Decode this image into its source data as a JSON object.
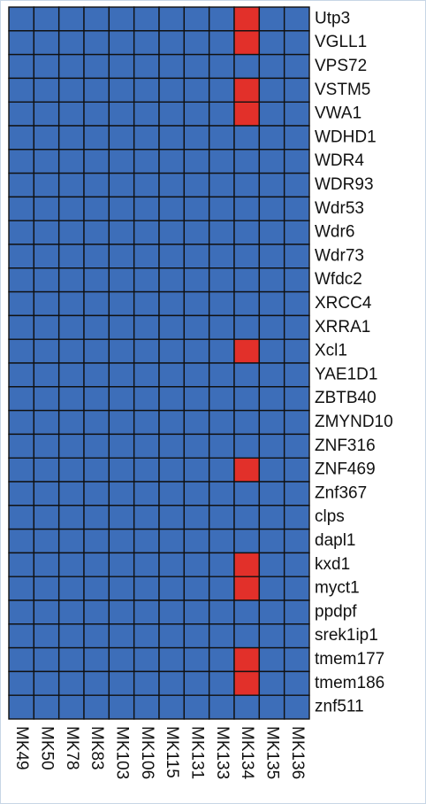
{
  "chart_data": {
    "type": "heatmap",
    "rows": [
      "Utp3",
      "VGLL1",
      "VPS72",
      "VSTM5",
      "VWA1",
      "WDHD1",
      "WDR4",
      "WDR93",
      "Wdr53",
      "Wdr6",
      "Wdr73",
      "Wfdc2",
      "XRCC4",
      "XRRA1",
      "Xcl1",
      "YAE1D1",
      "ZBTB40",
      "ZMYND10",
      "ZNF316",
      "ZNF469",
      "Znf367",
      "clps",
      "dapl1",
      "kxd1",
      "myct1",
      "ppdpf",
      "srek1ip1",
      "tmem177",
      "tmem186",
      "znf511"
    ],
    "columns": [
      "MK49",
      "MK50",
      "MK78",
      "MK83",
      "MK103",
      "MK106",
      "MK115",
      "MK131",
      "MK133",
      "MK134",
      "MK135",
      "MK136"
    ],
    "values": [
      [
        0,
        0,
        0,
        0,
        0,
        0,
        0,
        0,
        0,
        1,
        0,
        0
      ],
      [
        0,
        0,
        0,
        0,
        0,
        0,
        0,
        0,
        0,
        1,
        0,
        0
      ],
      [
        0,
        0,
        0,
        0,
        0,
        0,
        0,
        0,
        0,
        0,
        0,
        0
      ],
      [
        0,
        0,
        0,
        0,
        0,
        0,
        0,
        0,
        0,
        1,
        0,
        0
      ],
      [
        0,
        0,
        0,
        0,
        0,
        0,
        0,
        0,
        0,
        1,
        0,
        0
      ],
      [
        0,
        0,
        0,
        0,
        0,
        0,
        0,
        0,
        0,
        0,
        0,
        0
      ],
      [
        0,
        0,
        0,
        0,
        0,
        0,
        0,
        0,
        0,
        0,
        0,
        0
      ],
      [
        0,
        0,
        0,
        0,
        0,
        0,
        0,
        0,
        0,
        0,
        0,
        0
      ],
      [
        0,
        0,
        0,
        0,
        0,
        0,
        0,
        0,
        0,
        0,
        0,
        0
      ],
      [
        0,
        0,
        0,
        0,
        0,
        0,
        0,
        0,
        0,
        0,
        0,
        0
      ],
      [
        0,
        0,
        0,
        0,
        0,
        0,
        0,
        0,
        0,
        0,
        0,
        0
      ],
      [
        0,
        0,
        0,
        0,
        0,
        0,
        0,
        0,
        0,
        0,
        0,
        0
      ],
      [
        0,
        0,
        0,
        0,
        0,
        0,
        0,
        0,
        0,
        0,
        0,
        0
      ],
      [
        0,
        0,
        0,
        0,
        0,
        0,
        0,
        0,
        0,
        0,
        0,
        0
      ],
      [
        0,
        0,
        0,
        0,
        0,
        0,
        0,
        0,
        0,
        1,
        0,
        0
      ],
      [
        0,
        0,
        0,
        0,
        0,
        0,
        0,
        0,
        0,
        0,
        0,
        0
      ],
      [
        0,
        0,
        0,
        0,
        0,
        0,
        0,
        0,
        0,
        0,
        0,
        0
      ],
      [
        0,
        0,
        0,
        0,
        0,
        0,
        0,
        0,
        0,
        0,
        0,
        0
      ],
      [
        0,
        0,
        0,
        0,
        0,
        0,
        0,
        0,
        0,
        0,
        0,
        0
      ],
      [
        0,
        0,
        0,
        0,
        0,
        0,
        0,
        0,
        0,
        1,
        0,
        0
      ],
      [
        0,
        0,
        0,
        0,
        0,
        0,
        0,
        0,
        0,
        0,
        0,
        0
      ],
      [
        0,
        0,
        0,
        0,
        0,
        0,
        0,
        0,
        0,
        0,
        0,
        0
      ],
      [
        0,
        0,
        0,
        0,
        0,
        0,
        0,
        0,
        0,
        0,
        0,
        0
      ],
      [
        0,
        0,
        0,
        0,
        0,
        0,
        0,
        0,
        0,
        1,
        0,
        0
      ],
      [
        0,
        0,
        0,
        0,
        0,
        0,
        0,
        0,
        0,
        1,
        0,
        0
      ],
      [
        0,
        0,
        0,
        0,
        0,
        0,
        0,
        0,
        0,
        0,
        0,
        0
      ],
      [
        0,
        0,
        0,
        0,
        0,
        0,
        0,
        0,
        0,
        0,
        0,
        0
      ],
      [
        0,
        0,
        0,
        0,
        0,
        0,
        0,
        0,
        0,
        1,
        0,
        0
      ],
      [
        0,
        0,
        0,
        0,
        0,
        0,
        0,
        0,
        0,
        1,
        0,
        0
      ],
      [
        0,
        0,
        0,
        0,
        0,
        0,
        0,
        0,
        0,
        0,
        0,
        0
      ]
    ],
    "colors": [
      "#3d6eb9",
      "#e2302a"
    ]
  }
}
